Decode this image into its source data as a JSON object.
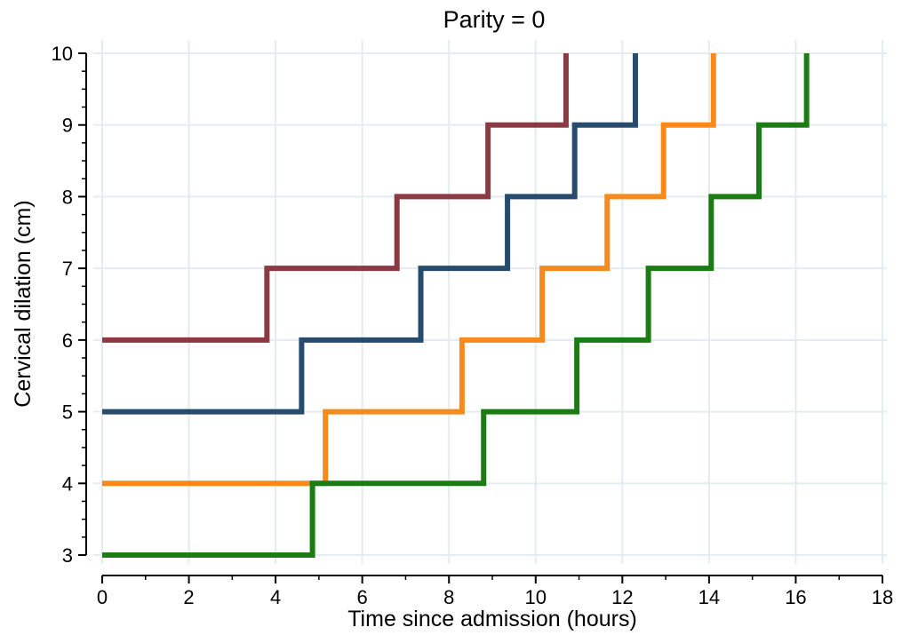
{
  "chart_data": {
    "type": "line",
    "step": true,
    "title": "Parity = 0",
    "xlabel": "Time since admission (hours)",
    "ylabel": "Cervical dilation (cm)",
    "xlim": [
      0,
      18
    ],
    "ylim": [
      3,
      10
    ],
    "xticks": [
      "0",
      "2",
      "4",
      "6",
      "8",
      "10",
      "12",
      "14",
      "16",
      "18"
    ],
    "yticks": [
      "3",
      "4",
      "5",
      "6",
      "7",
      "8",
      "9",
      "10"
    ],
    "grid": true,
    "series": [
      {
        "color": "#8b3a44",
        "x": [
          0,
          3.8,
          6.8,
          8.9,
          10.7
        ],
        "y": [
          6,
          7,
          8,
          9,
          10
        ]
      },
      {
        "color": "#274b6d",
        "x": [
          0,
          4.6,
          7.35,
          9.35,
          10.9,
          12.3
        ],
        "y": [
          5,
          6,
          7,
          8,
          9,
          10
        ]
      },
      {
        "color": "#f68a1c",
        "x": [
          0,
          5.15,
          8.3,
          10.15,
          11.65,
          12.95,
          14.1
        ],
        "y": [
          4,
          5,
          6,
          7,
          8,
          9,
          10
        ]
      },
      {
        "color": "#1a7c12",
        "x": [
          0,
          4.85,
          8.8,
          10.95,
          12.6,
          14.05,
          15.15,
          16.25
        ],
        "y": [
          3,
          4,
          5,
          6,
          7,
          8,
          9,
          10
        ]
      }
    ]
  }
}
